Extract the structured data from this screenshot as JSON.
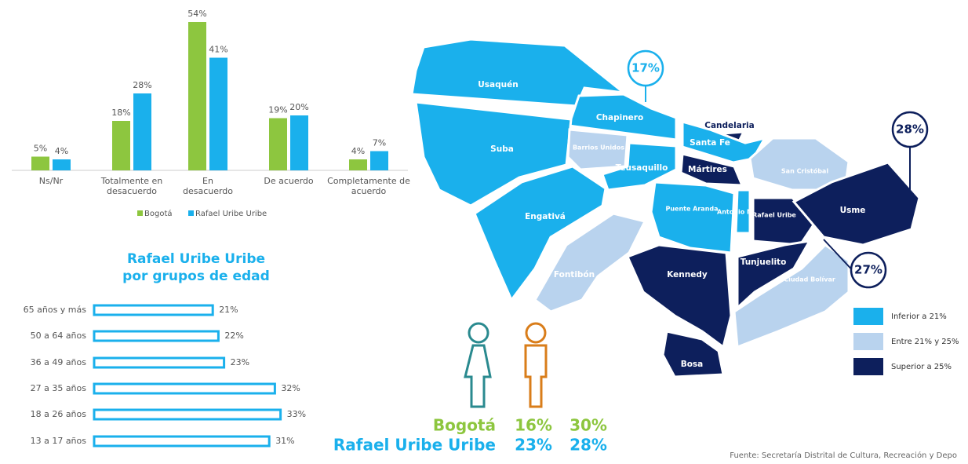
{
  "chart_data": [
    {
      "type": "bar",
      "categories": [
        "Ns/Nr",
        "Totalmente en desacuerdo",
        "En desacuerdo",
        "De acuerdo",
        "Completamente de acuerdo"
      ],
      "series": [
        {
          "name": "Bogotá",
          "color": "#8dc63f",
          "values": [
            5,
            18,
            54,
            19,
            4
          ],
          "value_labels": [
            "5%",
            "18%",
            "54%",
            "19%",
            "4%"
          ]
        },
        {
          "name": "Rafael Uribe Uribe",
          "color": "#1ab0ec",
          "values": [
            4,
            28,
            41,
            20,
            7
          ],
          "value_labels": [
            "4%",
            "28%",
            "41%",
            "20%",
            "7%"
          ]
        }
      ]
    },
    {
      "type": "barh",
      "title": [
        "Rafael Uribe Uribe",
        "por grupos de edad"
      ],
      "categories": [
        "65 años y más",
        "50 a 64 años",
        "36 a 49 años",
        "27 a 35 años",
        "18 a 26 años",
        "13 a 17 años"
      ],
      "values": [
        21,
        22,
        23,
        32,
        33,
        31
      ],
      "value_labels": [
        "21%",
        "22%",
        "23%",
        "32%",
        "33%",
        "31%"
      ],
      "color": "#1ab0ec"
    }
  ],
  "gender": {
    "rows": [
      {
        "name": "Bogotá",
        "color": "#8dc63f",
        "cells": [
          "16%",
          "30%"
        ]
      },
      {
        "name": "Rafael Uribe Uribe",
        "color": "#1ab0ec",
        "cells": [
          "23%",
          "28%"
        ]
      }
    ]
  },
  "map": {
    "legend": [
      {
        "label": "Inferior a 21%",
        "color": "#1ab0ec"
      },
      {
        "label": "Entre 21% y 25%",
        "color": "#b9d3ee"
      },
      {
        "label": "Superior a 25%",
        "color": "#0d1f5c"
      }
    ],
    "localities": [
      {
        "name": "Usaquén",
        "color": "#1ab0ec"
      },
      {
        "name": "Chapinero",
        "color": "#1ab0ec"
      },
      {
        "name": "Suba",
        "color": "#1ab0ec"
      },
      {
        "name": "Barrios Unidos",
        "color": "#b9d3ee"
      },
      {
        "name": "Teusaquillo",
        "color": "#1ab0ec"
      },
      {
        "name": "Candelaria",
        "color": "#0d1f5c"
      },
      {
        "name": "Santa Fe",
        "color": "#1ab0ec"
      },
      {
        "name": "Mártires",
        "color": "#0d1f5c"
      },
      {
        "name": "San Cristóbal",
        "color": "#b9d3ee"
      },
      {
        "name": "Engativá",
        "color": "#1ab0ec"
      },
      {
        "name": "Puente Aranda",
        "color": "#1ab0ec"
      },
      {
        "name": "Antonio Nariño",
        "color": "#1ab0ec"
      },
      {
        "name": "Rafael Uribe",
        "color": "#0d1f5c"
      },
      {
        "name": "Usme",
        "color": "#0d1f5c"
      },
      {
        "name": "Fontibón",
        "color": "#b9d3ee"
      },
      {
        "name": "Kennedy",
        "color": "#0d1f5c"
      },
      {
        "name": "Tunjuelito",
        "color": "#0d1f5c"
      },
      {
        "name": "Ciudad Bolívar",
        "color": "#b9d3ee"
      },
      {
        "name": "Bosa",
        "color": "#0d1f5c"
      }
    ],
    "callouts": [
      {
        "label": "17%",
        "color": "#1ab0ec"
      },
      {
        "label": "28%",
        "color": "#0d1f5c"
      },
      {
        "label": "27%",
        "color": "#0d1f5c"
      }
    ]
  },
  "source": "Fuente: Secretaría Distrital de Cultura, Recreación y Depo"
}
